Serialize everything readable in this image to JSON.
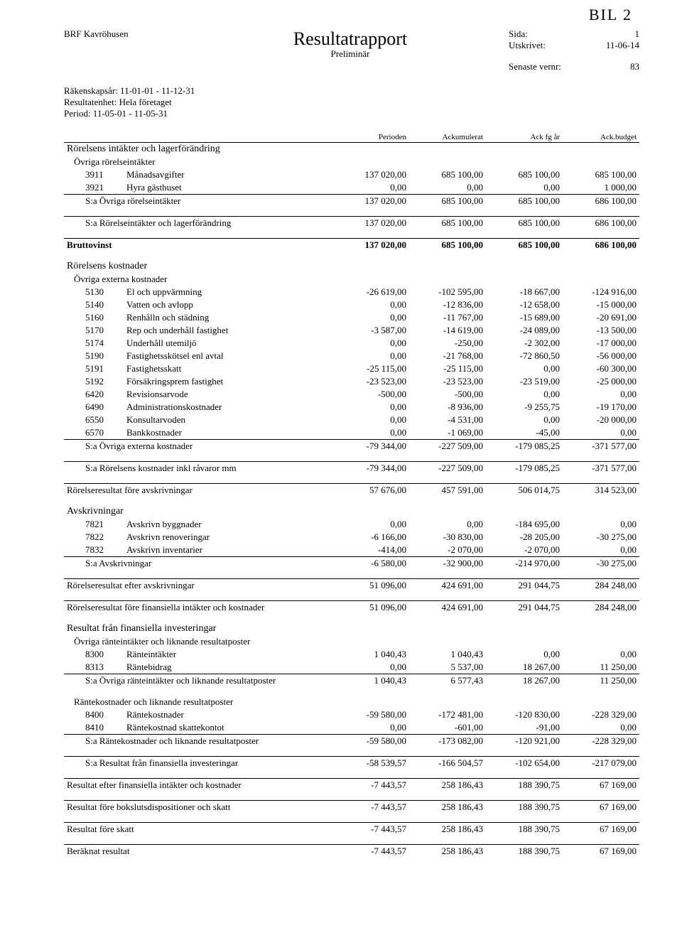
{
  "handwritten": "BIL 2",
  "org": "BRF Kavröhusen",
  "title": "Resultatrapport",
  "subtitle": "Preliminär",
  "meta_right": {
    "sida_label": "Sida:",
    "sida": "1",
    "utskrivet_label": "Utskrivet:",
    "utskrivet": "11-06-14",
    "senaste_label": "Senaste vernr:",
    "senaste": "83"
  },
  "meta_left": {
    "rakenskap": "Räkenskapsår: 11-01-01 - 11-12-31",
    "resultatenhet": "Resultatenhet: Hela företaget",
    "period": "Period: 11-05-01 - 11-05-31"
  },
  "cols": {
    "c1": "Perioden",
    "c2": "Ackumulerat",
    "c3": "Ack fg år",
    "c4": "Ack.budget"
  },
  "sec_intakter": "Rörelsens intäkter och lagerförändring",
  "sub_ovr_intakter": "Övriga rörelseintäkter",
  "r3911": {
    "code": "3911",
    "text": "Månadsavgifter",
    "v": [
      "137 020,00",
      "685 100,00",
      "685 100,00",
      "685 100,00"
    ]
  },
  "r3921": {
    "code": "3921",
    "text": "Hyra gästhuset",
    "v": [
      "0,00",
      "0,00",
      "0,00",
      "1 000,00"
    ]
  },
  "sum_ovr_intakter": {
    "text": "S:a Övriga rörelseintäkter",
    "v": [
      "137 020,00",
      "685 100,00",
      "685 100,00",
      "686 100,00"
    ]
  },
  "sum_intakter": {
    "text": "S:a Rörelseintäkter och lagerförändring",
    "v": [
      "137 020,00",
      "685 100,00",
      "685 100,00",
      "686 100,00"
    ]
  },
  "bruttovinst": {
    "text": "Bruttovinst",
    "v": [
      "137 020,00",
      "685 100,00",
      "685 100,00",
      "686 100,00"
    ]
  },
  "sec_kostnader": "Rörelsens kostnader",
  "sub_ext_kost": "Övriga externa kostnader",
  "r5130": {
    "code": "5130",
    "text": "El och uppvärmning",
    "v": [
      "-26 619,00",
      "-102 595,00",
      "-18 667,00",
      "-124 916,00"
    ]
  },
  "r5140": {
    "code": "5140",
    "text": "Vatten och avlopp",
    "v": [
      "0,00",
      "-12 836,00",
      "-12 658,00",
      "-15 000,00"
    ]
  },
  "r5160": {
    "code": "5160",
    "text": "Renhålln och städning",
    "v": [
      "0,00",
      "-11 767,00",
      "-15 689,00",
      "-20 691,00"
    ]
  },
  "r5170": {
    "code": "5170",
    "text": "Rep och underhåll fastighet",
    "v": [
      "-3 587,00",
      "-14 619,00",
      "-24 089,00",
      "-13 500,00"
    ]
  },
  "r5174": {
    "code": "5174",
    "text": "Underhåll utemiljö",
    "v": [
      "0,00",
      "-250,00",
      "-2 302,00",
      "-17 000,00"
    ]
  },
  "r5190": {
    "code": "5190",
    "text": "Fastighetsskötsel enl avtal",
    "v": [
      "0,00",
      "-21 768,00",
      "-72 860,50",
      "-56 000,00"
    ]
  },
  "r5191": {
    "code": "5191",
    "text": "Fastighetsskatt",
    "v": [
      "-25 115,00",
      "-25 115,00",
      "0,00",
      "-60 300,00"
    ]
  },
  "r5192": {
    "code": "5192",
    "text": "Försäkringsprem fastighet",
    "v": [
      "-23 523,00",
      "-23 523,00",
      "-23 519,00",
      "-25 000,00"
    ]
  },
  "r6420": {
    "code": "6420",
    "text": "Revisionsarvode",
    "v": [
      "-500,00",
      "-500,00",
      "0,00",
      "0,00"
    ]
  },
  "r6490": {
    "code": "6490",
    "text": "Administrationskostnader",
    "v": [
      "0,00",
      "-8 936,00",
      "-9 255,75",
      "-19 170,00"
    ]
  },
  "r6550": {
    "code": "6550",
    "text": "Konsultarvoden",
    "v": [
      "0,00",
      "-4 531,00",
      "0,00",
      "-20 000,00"
    ]
  },
  "r6570": {
    "code": "6570",
    "text": "Bankkostnader",
    "v": [
      "0,00",
      "-1 069,00",
      "-45,00",
      "0,00"
    ]
  },
  "sum_ext_kost": {
    "text": "S:a Övriga externa kostnader",
    "v": [
      "-79 344,00",
      "-227 509,00",
      "-179 085,25",
      "-371 577,00"
    ]
  },
  "sum_kost_ravaror": {
    "text": "S:a Rörelsens kostnader inkl råvaror mm",
    "v": [
      "-79 344,00",
      "-227 509,00",
      "-179 085,25",
      "-371 577,00"
    ]
  },
  "res_fore_avskr": {
    "text": "Rörelseresultat före avskrivningar",
    "v": [
      "57 676,00",
      "457 591,00",
      "506 014,75",
      "314 523,00"
    ]
  },
  "sec_avskr": "Avskrivningar",
  "r7821": {
    "code": "7821",
    "text": "Avskrivn byggnader",
    "v": [
      "0,00",
      "0,00",
      "-184 695,00",
      "0,00"
    ]
  },
  "r7822": {
    "code": "7822",
    "text": "Avskrivn renoveringar",
    "v": [
      "-6 166,00",
      "-30 830,00",
      "-28 205,00",
      "-30 275,00"
    ]
  },
  "r7832": {
    "code": "7832",
    "text": "Avskrivn inventarier",
    "v": [
      "-414,00",
      "-2 070,00",
      "-2 070,00",
      "0,00"
    ]
  },
  "sum_avskr": {
    "text": "S:a Avskrivningar",
    "v": [
      "-6 580,00",
      "-32 900,00",
      "-214 970,00",
      "-30 275,00"
    ]
  },
  "res_efter_avskr": {
    "text": "Rörelseresultat efter avskrivningar",
    "v": [
      "51 096,00",
      "424 691,00",
      "291 044,75",
      "284 248,00"
    ]
  },
  "res_fore_fin": {
    "text": "Rörelseresultat före finansiella intäkter och kostnader",
    "v": [
      "51 096,00",
      "424 691,00",
      "291 044,75",
      "284 248,00"
    ]
  },
  "sec_fin": "Resultat från finansiella investeringar",
  "sub_ranteint": "Övriga ränteintäkter och liknande resultatposter",
  "r8300": {
    "code": "8300",
    "text": "Ränteintäkter",
    "v": [
      "1 040,43",
      "1 040,43",
      "0,00",
      "0,00"
    ]
  },
  "r8313": {
    "code": "8313",
    "text": "Räntebidrag",
    "v": [
      "0,00",
      "5 537,00",
      "18 267,00",
      "11 250,00"
    ]
  },
  "sum_ranteint": {
    "text": "S:a Övriga ränteintäkter och liknande resultatposter",
    "v": [
      "1 040,43",
      "6 577,43",
      "18 267,00",
      "11 250,00"
    ]
  },
  "sub_rantekost": "Räntekostnader och liknande resultatposter",
  "r8400": {
    "code": "8400",
    "text": "Räntekostnader",
    "v": [
      "-59 580,00",
      "-172 481,00",
      "-120 830,00",
      "-228 329,00"
    ]
  },
  "r8410": {
    "code": "8410",
    "text": "Räntekostnad skattekontot",
    "v": [
      "0,00",
      "-601,00",
      "-91,00",
      "0,00"
    ]
  },
  "sum_rantekost": {
    "text": "S:a Räntekostnader och liknande resultatposter",
    "v": [
      "-59 580,00",
      "-173 082,00",
      "-120 921,00",
      "-228 329,00"
    ]
  },
  "sum_fin": {
    "text": "S:a Resultat från finansiella investeringar",
    "v": [
      "-58 539,57",
      "-166 504,57",
      "-102 654,00",
      "-217 079,00"
    ]
  },
  "res_efter_fin": {
    "text": "Resultat efter finansiella intäkter och kostnader",
    "v": [
      "-7 443,57",
      "258 186,43",
      "188 390,75",
      "67 169,00"
    ]
  },
  "res_fore_boksl": {
    "text": "Resultat före bokslutsdispositioner och skatt",
    "v": [
      "-7 443,57",
      "258 186,43",
      "188 390,75",
      "67 169,00"
    ]
  },
  "res_fore_skatt": {
    "text": "Resultat före skatt",
    "v": [
      "-7 443,57",
      "258 186,43",
      "188 390,75",
      "67 169,00"
    ]
  },
  "beraknat": {
    "text": "Beräknat resultat",
    "v": [
      "-7 443,57",
      "258 186,43",
      "188 390,75",
      "67 169,00"
    ]
  }
}
